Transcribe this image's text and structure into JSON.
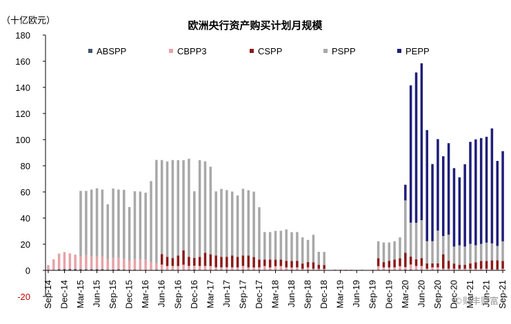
{
  "chart_data": {
    "type": "bar",
    "stacked": true,
    "title": "欧洲央行资产购买计划月规模",
    "unit_label": "（十亿欧元）",
    "ylim": [
      -20,
      180
    ],
    "yticks": [
      -20,
      0,
      20,
      40,
      60,
      80,
      100,
      120,
      140,
      160,
      180
    ],
    "grid": false,
    "legend_position": "top",
    "x_tick_labels": [
      "Sep-14",
      "Dec-14",
      "Mar-15",
      "Jun-15",
      "Sep-15",
      "Dec-15",
      "Mar-16",
      "Jun-16",
      "Sep-16",
      "Dec-16",
      "Mar-17",
      "Jun-17",
      "Sep-17",
      "Dec-17",
      "Mar-18",
      "Jun-18",
      "Sep-18",
      "Dec-18",
      "Mar-19",
      "Jun-19",
      "Sep-19",
      "Dec-19",
      "Mar-20",
      "Jun-20",
      "Sep-20",
      "Dec-20",
      "Mar-21",
      "Jun-21",
      "Sep-21"
    ],
    "months": [
      "2014-09",
      "2014-10",
      "2014-11",
      "2014-12",
      "2015-01",
      "2015-02",
      "2015-03",
      "2015-04",
      "2015-05",
      "2015-06",
      "2015-07",
      "2015-08",
      "2015-09",
      "2015-10",
      "2015-11",
      "2015-12",
      "2016-01",
      "2016-02",
      "2016-03",
      "2016-04",
      "2016-05",
      "2016-06",
      "2016-07",
      "2016-08",
      "2016-09",
      "2016-10",
      "2016-11",
      "2016-12",
      "2017-01",
      "2017-02",
      "2017-03",
      "2017-04",
      "2017-05",
      "2017-06",
      "2017-07",
      "2017-08",
      "2017-09",
      "2017-10",
      "2017-11",
      "2017-12",
      "2018-01",
      "2018-02",
      "2018-03",
      "2018-04",
      "2018-05",
      "2018-06",
      "2018-07",
      "2018-08",
      "2018-09",
      "2018-10",
      "2018-11",
      "2018-12",
      "2019-01",
      "2019-02",
      "2019-03",
      "2019-04",
      "2019-05",
      "2019-06",
      "2019-07",
      "2019-08",
      "2019-09",
      "2019-10",
      "2019-11",
      "2019-12",
      "2020-01",
      "2020-02",
      "2020-03",
      "2020-04",
      "2020-05",
      "2020-06",
      "2020-07",
      "2020-08",
      "2020-09",
      "2020-10",
      "2020-11",
      "2020-12",
      "2021-01",
      "2021-02",
      "2021-03",
      "2021-04",
      "2021-05",
      "2021-06",
      "2021-07",
      "2021-08",
      "2021-09"
    ],
    "series": [
      {
        "name": "ABSPP",
        "color": "#44546a",
        "values": [
          0,
          0.4,
          0.8,
          1,
          1,
          1,
          0.8,
          0.8,
          0.8,
          0.8,
          0.8,
          0.5,
          0.6,
          0.8,
          0.6,
          0.4,
          0.5,
          0.3,
          0.4,
          0.3,
          0.5,
          0.4,
          0.3,
          0.4,
          0.3,
          0.3,
          0.4,
          0.5,
          0.3,
          0.4,
          0.3,
          0.4,
          0.3,
          0.4,
          0.3,
          0.3,
          0.4,
          0.3,
          0.2,
          0.3,
          0.3,
          0.3,
          0.2,
          0.3,
          0.3,
          0.2,
          0.3,
          0.2,
          0.3,
          0.2,
          0.2,
          0.1,
          0,
          0.1,
          0,
          -0.1,
          0,
          0,
          0,
          0,
          0,
          0.2,
          0.3,
          0.3,
          0.3,
          0.2,
          0.5,
          0.5,
          0.4,
          0.4,
          0.3,
          0.3,
          0.4,
          0.3,
          0.3,
          0.2,
          0.2,
          0.2,
          0.3,
          0.2,
          0.2,
          0.2,
          0.1,
          0.2,
          0.2
        ]
      },
      {
        "name": "CBPP3",
        "color": "#e6a2a8",
        "values": [
          4,
          8,
          12,
          13,
          12,
          11,
          10,
          11,
          10,
          10,
          10,
          8,
          9,
          9,
          8,
          7,
          8,
          8,
          8,
          6,
          5,
          4,
          3,
          3,
          3,
          4,
          3,
          3,
          3,
          3,
          3,
          2,
          2,
          2,
          2,
          2,
          3,
          2,
          2,
          2,
          3,
          2,
          3,
          3,
          2,
          2,
          2,
          1,
          2,
          1,
          1,
          1,
          0,
          0.5,
          0.5,
          0.5,
          0.5,
          0,
          0.5,
          0,
          0.5,
          3,
          2,
          2,
          2,
          3,
          2,
          4,
          3,
          3,
          1,
          2,
          2,
          1,
          1,
          1,
          1,
          1,
          1,
          1,
          1,
          1,
          0.5,
          0.5,
          1
        ]
      },
      {
        "name": "CSPP",
        "color": "#8b1a1a",
        "values": [
          0,
          0,
          0,
          0,
          0,
          0,
          0,
          0,
          0,
          0,
          0,
          0,
          0,
          0,
          0,
          0,
          0,
          0,
          0,
          0,
          0,
          8,
          7,
          6,
          8,
          11,
          7,
          6,
          7,
          10,
          9,
          9,
          8,
          8,
          9,
          8,
          8,
          9,
          8,
          6,
          5,
          6,
          5,
          5,
          5,
          5,
          5,
          4,
          4,
          5,
          3,
          3,
          0,
          0,
          0,
          0,
          0,
          0,
          0,
          0,
          0,
          6,
          4,
          5,
          6,
          6,
          11,
          6,
          5,
          6,
          4,
          3,
          3,
          11,
          6,
          4,
          3,
          3,
          4,
          5,
          6,
          6,
          7,
          7,
          6
        ]
      },
      {
        "name": "PSPP",
        "color": "#a8a8a8",
        "values": [
          0,
          0,
          0,
          0,
          0,
          0,
          50,
          49,
          51,
          52,
          51,
          42,
          53,
          52,
          53,
          41,
          52,
          52,
          51,
          62,
          79,
          72,
          73,
          75,
          73,
          69,
          75,
          51,
          74,
          70,
          67,
          49,
          52,
          51,
          49,
          47,
          51,
          50,
          50,
          40,
          21,
          21,
          22,
          22,
          24,
          22,
          22,
          20,
          17,
          21,
          10,
          10,
          0,
          0,
          0,
          0,
          0,
          0,
          0,
          0,
          0,
          13,
          15,
          14,
          14,
          16,
          40,
          26,
          28,
          29,
          17,
          17,
          25,
          14,
          20,
          13,
          15,
          14,
          15,
          13,
          13,
          14,
          13,
          11,
          15
        ]
      },
      {
        "name": "PEPP",
        "color": "#1f1f7a",
        "values": [
          0,
          0,
          0,
          0,
          0,
          0,
          0,
          0,
          0,
          0,
          0,
          0,
          0,
          0,
          0,
          0,
          0,
          0,
          0,
          0,
          0,
          0,
          0,
          0,
          0,
          0,
          0,
          0,
          0,
          0,
          0,
          0,
          0,
          0,
          0,
          0,
          0,
          0,
          0,
          0,
          0,
          0,
          0,
          0,
          0,
          0,
          0,
          0,
          0,
          0,
          0,
          0,
          0,
          0,
          0,
          0,
          0,
          0,
          0,
          0,
          0,
          0,
          0,
          0,
          0,
          0,
          12,
          105,
          115,
          120,
          85,
          59,
          70,
          61,
          70,
          60,
          52,
          63,
          78,
          81,
          81,
          81,
          88,
          65,
          69
        ]
      }
    ]
  },
  "watermark": "©财丰财富"
}
